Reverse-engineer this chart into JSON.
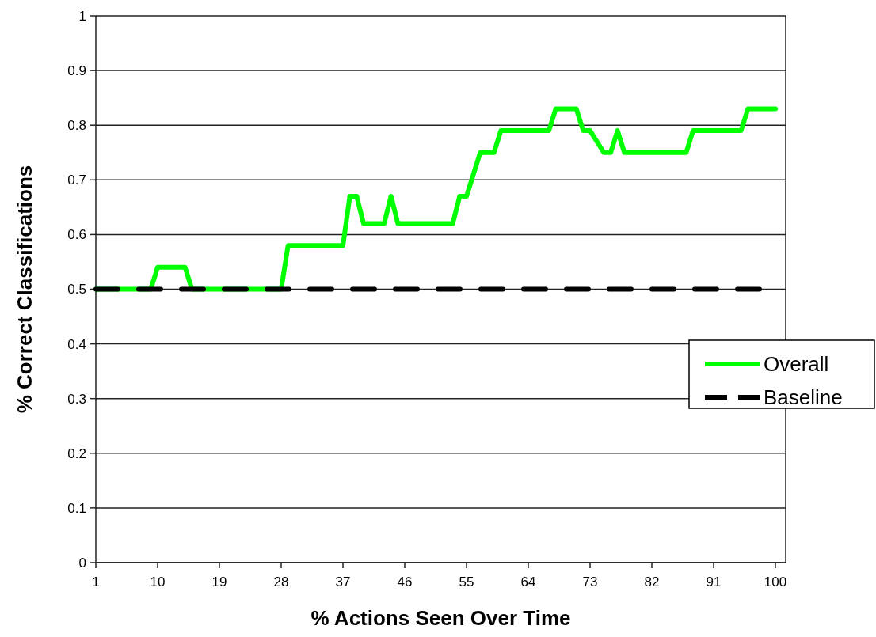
{
  "chart_data": {
    "type": "line",
    "xlabel": "% Actions Seen Over Time",
    "ylabel": "% Correct Classifications",
    "xlim": [
      1,
      101.5
    ],
    "xticks": [
      1,
      10,
      19,
      28,
      37,
      46,
      55,
      64,
      73,
      82,
      91,
      100
    ],
    "ylim": [
      0,
      1
    ],
    "yticks": [
      0,
      0.1,
      0.2,
      0.3,
      0.4,
      0.5,
      0.6,
      0.7,
      0.8,
      0.9,
      1
    ],
    "grid": "y",
    "legend": "right",
    "marker": "none",
    "series": [
      {
        "name": "Overall",
        "color": "#00ff00",
        "line_style": "solid",
        "x": [
          1,
          9,
          10,
          14,
          15,
          28,
          29,
          37,
          38,
          39,
          40,
          43,
          44,
          45,
          53,
          54,
          55,
          57,
          59,
          60,
          67,
          68,
          71,
          72,
          73,
          75,
          76,
          77,
          78,
          87,
          88,
          95,
          96,
          100
        ],
        "values": [
          0.5,
          0.5,
          0.54,
          0.54,
          0.5,
          0.5,
          0.58,
          0.58,
          0.67,
          0.67,
          0.62,
          0.62,
          0.67,
          0.62,
          0.62,
          0.67,
          0.67,
          0.75,
          0.75,
          0.79,
          0.79,
          0.83,
          0.83,
          0.79,
          0.79,
          0.75,
          0.75,
          0.79,
          0.75,
          0.75,
          0.79,
          0.79,
          0.83,
          0.83
        ]
      },
      {
        "name": "Baseline",
        "color": "#000000",
        "line_style": "dashed",
        "x": [
          1,
          100
        ],
        "values": [
          0.5,
          0.5
        ]
      }
    ]
  }
}
